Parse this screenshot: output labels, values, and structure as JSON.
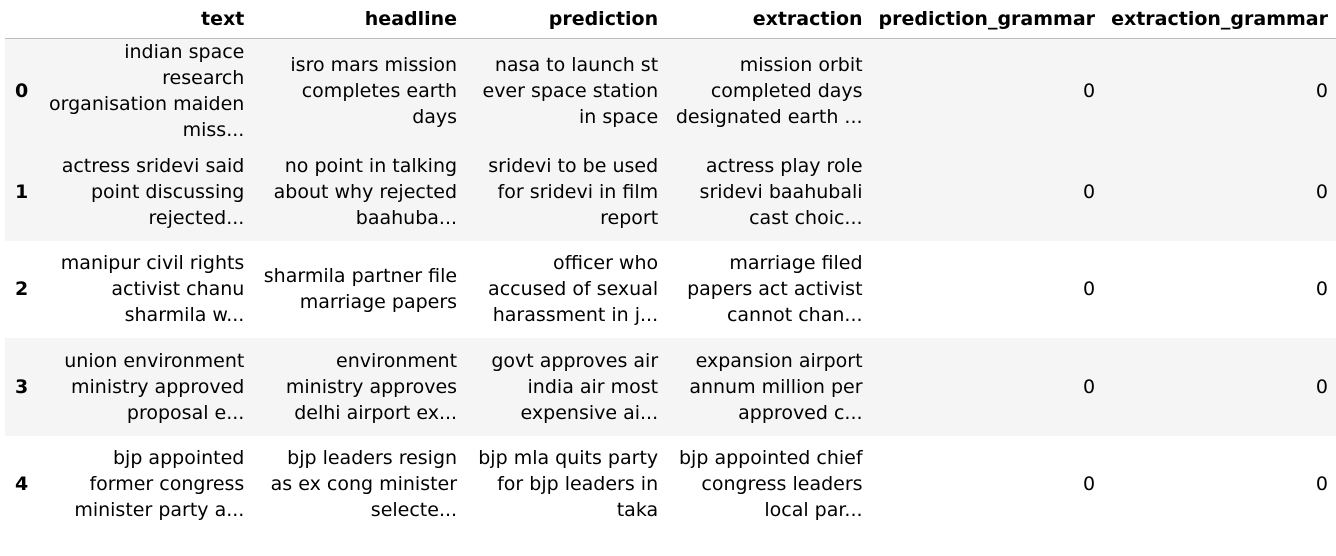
{
  "columns": {
    "index": "",
    "text": "text",
    "headline": "headline",
    "prediction": "prediction",
    "extraction": "extraction",
    "prediction_grammar": "prediction_grammar",
    "extraction_grammar": "extraction_grammar"
  },
  "rows": [
    {
      "index": "0",
      "text": "indian space research organisation maiden miss...",
      "headline": "isro mars mission completes earth days",
      "prediction": "nasa to launch st ever space station in space",
      "extraction": "mission orbit completed days designated earth ...",
      "prediction_grammar": "0",
      "extraction_grammar": "0"
    },
    {
      "index": "1",
      "text": "actress sridevi said point discussing rejected...",
      "headline": "no point in talking about why rejected baahuba...",
      "prediction": "sridevi to be used for sridevi in film report",
      "extraction": "actress play role sridevi baahubali cast choic...",
      "prediction_grammar": "0",
      "extraction_grammar": "0"
    },
    {
      "index": "2",
      "text": "manipur civil rights activist chanu sharmila w...",
      "headline": "sharmila partner file marriage papers",
      "prediction": "officer who accused of sexual harassment in j...",
      "extraction": "marriage filed papers act activist cannot chan...",
      "prediction_grammar": "0",
      "extraction_grammar": "0"
    },
    {
      "index": "3",
      "text": "union environment ministry approved proposal e...",
      "headline": "environment ministry approves delhi airport ex...",
      "prediction": "govt approves air india air most expensive ai...",
      "extraction": "expansion airport annum million per approved c...",
      "prediction_grammar": "0",
      "extraction_grammar": "0"
    },
    {
      "index": "4",
      "text": "bjp appointed former congress minister party a...",
      "headline": "bjp leaders resign as ex cong minister selecte...",
      "prediction": "bjp mla quits party for bjp leaders in taka",
      "extraction": "bjp appointed chief congress leaders local par...",
      "prediction_grammar": "0",
      "extraction_grammar": "0"
    }
  ]
}
